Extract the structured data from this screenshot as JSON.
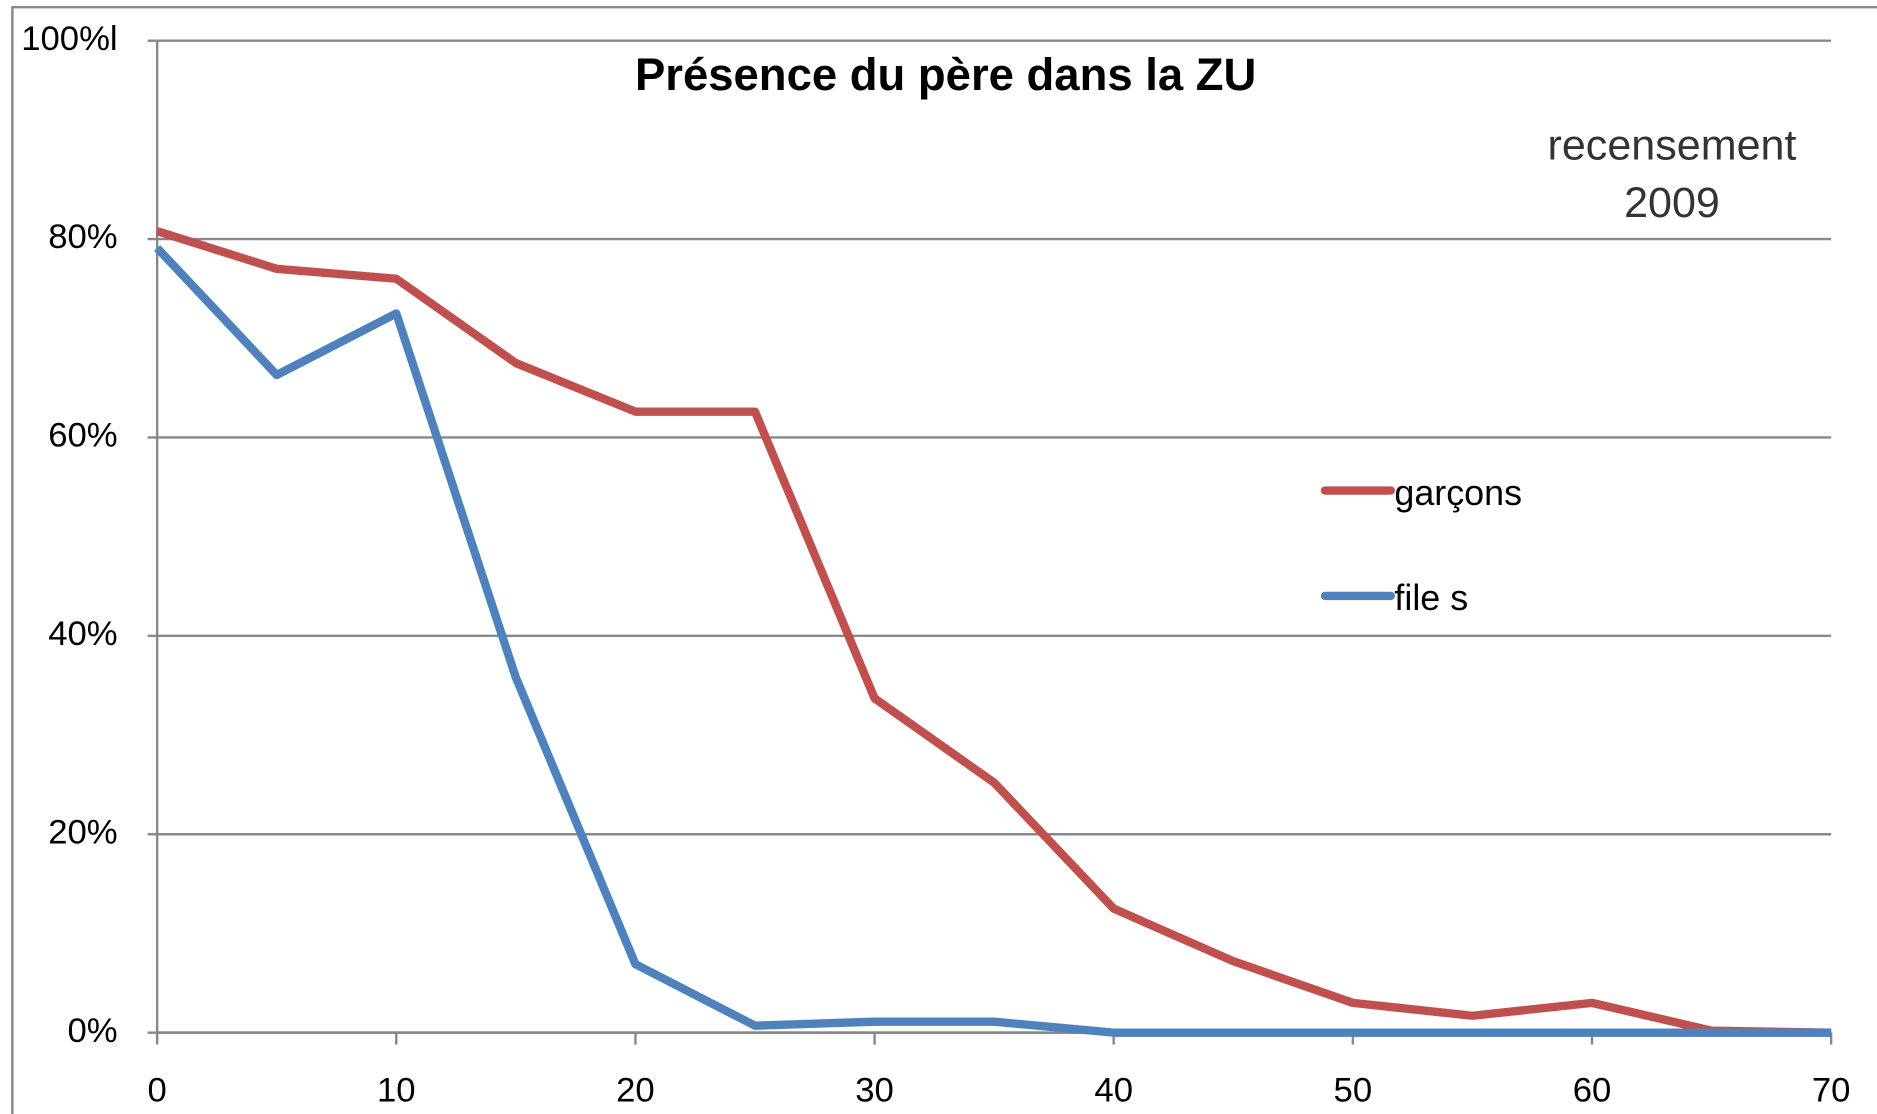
{
  "chart_data": {
    "type": "line",
    "title": "Présence du père dans la ZU",
    "annotation": [
      "recensement",
      "2009"
    ],
    "x": [
      0,
      5,
      10,
      15,
      20,
      25,
      30,
      35,
      40,
      45,
      50,
      55,
      60,
      65,
      70
    ],
    "series": [
      {
        "name": "garçons",
        "color": "#c0504d",
        "values": [
          80.8,
          77,
          76,
          67.5,
          62.6,
          62.6,
          33.7,
          25.2,
          12.5,
          7.2,
          3,
          1.7,
          3,
          0.2,
          0
        ]
      },
      {
        "name": "file s",
        "color": "#4f81bd",
        "values": [
          79.1,
          66.3,
          72.5,
          35.8,
          6.9,
          0.7,
          1.1,
          1.1,
          0,
          0,
          0,
          0,
          0,
          0,
          0
        ]
      }
    ],
    "xlim": [
      0,
      70
    ],
    "xticks": [
      0,
      10,
      20,
      30,
      40,
      50,
      60,
      70
    ],
    "ylim": [
      0,
      100
    ],
    "yticks": [
      {
        "value": 0,
        "label": "0%"
      },
      {
        "value": 20,
        "label": "20%"
      },
      {
        "value": 40,
        "label": "40%"
      },
      {
        "value": 60,
        "label": "60%"
      },
      {
        "value": 80,
        "label": "80%"
      },
      {
        "value": 100,
        "label": "100%l"
      }
    ],
    "grid": true
  }
}
